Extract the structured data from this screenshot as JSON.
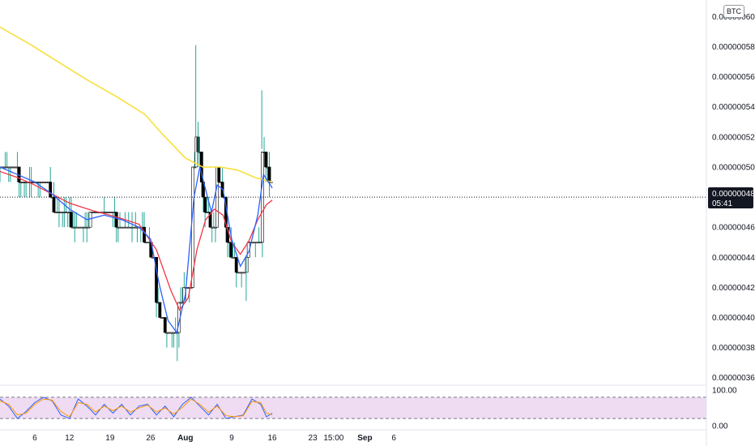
{
  "currency_badge": "BTC",
  "last_price": {
    "label": "0.00000048",
    "countdown": "05:41",
    "value": 4.8e-07
  },
  "chart_data": [
    {
      "type": "candlestick",
      "title": "",
      "price_axis": {
        "ylim": [
          3.55e-07,
          6.11e-07
        ],
        "ticks": [
          "0.00000060",
          "0.00000058",
          "0.00000056",
          "0.00000054",
          "0.00000052",
          "0.00000050",
          "0.00000048",
          "0.00000046",
          "0.00000044",
          "0.00000042",
          "0.00000040",
          "0.00000038",
          "0.00000036"
        ]
      },
      "time_axis": {
        "ticks": [
          {
            "label": "6",
            "day": 6,
            "bold": false
          },
          {
            "label": "12",
            "day": 12,
            "bold": false
          },
          {
            "label": "19",
            "day": 19,
            "bold": false
          },
          {
            "label": "26",
            "day": 26,
            "bold": false
          },
          {
            "label": "Aug",
            "day": 32,
            "bold": true
          },
          {
            "label": "9",
            "day": 40,
            "bold": false
          },
          {
            "label": "16",
            "day": 47,
            "bold": false
          },
          {
            "label": "23",
            "day": 54,
            "bold": false
          },
          {
            "label": "15:00",
            "day": 57.6,
            "bold": false
          },
          {
            "label": "Sep",
            "day": 63,
            "bold": true
          },
          {
            "label": "6",
            "day": 68,
            "bold": false
          }
        ]
      },
      "price_path": [
        [
          0,
          5e-07
        ],
        [
          3,
          5e-07
        ],
        [
          3.5,
          4.9e-07
        ],
        [
          8,
          4.9e-07
        ],
        [
          8.5,
          4.8e-07
        ],
        [
          10,
          4.7e-07
        ],
        [
          12,
          4.7e-07
        ],
        [
          12.5,
          4.6e-07
        ],
        [
          15,
          4.6e-07
        ],
        [
          16,
          4.7e-07
        ],
        [
          19,
          4.7e-07
        ],
        [
          21,
          4.6e-07
        ],
        [
          24,
          4.6e-07
        ],
        [
          25.5,
          4.5e-07
        ],
        [
          26.5,
          4.3e-07
        ],
        [
          27.5,
          4e-07
        ],
        [
          29,
          3.9e-07
        ],
        [
          30,
          3.9e-07
        ],
        [
          30.5,
          3.85e-07
        ],
        [
          31,
          4.1e-07
        ],
        [
          32,
          4.2e-07
        ],
        [
          32.7,
          4.5e-07
        ],
        [
          33.3,
          5e-07
        ],
        [
          33.8,
          5.2e-07
        ],
        [
          34.5,
          5e-07
        ],
        [
          35.5,
          4.7e-07
        ],
        [
          36.5,
          4.6e-07
        ],
        [
          37.5,
          5e-07
        ],
        [
          38.5,
          4.8e-07
        ],
        [
          39,
          4.6e-07
        ],
        [
          40,
          4.4e-07
        ],
        [
          41,
          4.3e-07
        ],
        [
          42,
          4.3e-07
        ],
        [
          43,
          4.5e-07
        ],
        [
          44,
          4.6e-07
        ],
        [
          45,
          5.2e-07
        ],
        [
          45.5,
          5e-07
        ],
        [
          46.5,
          4.9e-07
        ],
        [
          47,
          4.8e-07
        ]
      ],
      "wick_highs": [
        {
          "day": 33.8,
          "value": 5.81e-07
        },
        {
          "day": 45.2,
          "value": 5.51e-07
        },
        {
          "day": 34.2,
          "value": 5.3e-07
        }
      ],
      "wick_lows": [
        {
          "day": 30.6,
          "value": 3.71e-07
        },
        {
          "day": 42.5,
          "value": 4.11e-07
        }
      ],
      "series": [
        {
          "name": "",
          "color": "#f7e03b",
          "points": [
            [
              0,
              5.93e-07
            ],
            [
              5,
              5.82e-07
            ],
            [
              10,
              5.7e-07
            ],
            [
              15,
              5.58e-07
            ],
            [
              20,
              5.47e-07
            ],
            [
              25,
              5.35e-07
            ],
            [
              28,
              5.22e-07
            ],
            [
              32,
              5.06e-07
            ],
            [
              35,
              5e-07
            ],
            [
              38,
              5e-07
            ],
            [
              41,
              4.98e-07
            ],
            [
              44,
              4.93e-07
            ],
            [
              47,
              4.9e-07
            ]
          ]
        },
        {
          "name": "",
          "color": "#f23645",
          "points": [
            [
              0,
              4.97e-07
            ],
            [
              3,
              4.93e-07
            ],
            [
              6,
              4.88e-07
            ],
            [
              9,
              4.82e-07
            ],
            [
              12,
              4.76e-07
            ],
            [
              16,
              4.71e-07
            ],
            [
              20,
              4.67e-07
            ],
            [
              24,
              4.62e-07
            ],
            [
              27,
              4.45e-07
            ],
            [
              29.5,
              4.18e-07
            ],
            [
              31,
              4.05e-07
            ],
            [
              32.5,
              4.13e-07
            ],
            [
              34,
              4.45e-07
            ],
            [
              35.5,
              4.65e-07
            ],
            [
              37,
              4.72e-07
            ],
            [
              38.5,
              4.68e-07
            ],
            [
              40,
              4.5e-07
            ],
            [
              41.5,
              4.42e-07
            ],
            [
              43,
              4.51e-07
            ],
            [
              44.5,
              4.65e-07
            ],
            [
              46,
              4.75e-07
            ],
            [
              47,
              4.78e-07
            ]
          ]
        },
        {
          "name": "",
          "color": "#2962ff",
          "points": [
            [
              0,
              5e-07
            ],
            [
              3,
              4.95e-07
            ],
            [
              6,
              4.9e-07
            ],
            [
              9,
              4.82e-07
            ],
            [
              12,
              4.72e-07
            ],
            [
              15,
              4.65e-07
            ],
            [
              18,
              4.68e-07
            ],
            [
              21,
              4.65e-07
            ],
            [
              24,
              4.6e-07
            ],
            [
              26,
              4.52e-07
            ],
            [
              27.5,
              4.22e-07
            ],
            [
              29,
              3.98e-07
            ],
            [
              30.5,
              3.9e-07
            ],
            [
              32,
              4.15e-07
            ],
            [
              33.5,
              4.8e-07
            ],
            [
              34.5,
              5e-07
            ],
            [
              35.5,
              4.85e-07
            ],
            [
              36.5,
              4.7e-07
            ],
            [
              37.5,
              4.88e-07
            ],
            [
              38.5,
              4.85e-07
            ],
            [
              40,
              4.52e-07
            ],
            [
              41.5,
              4.34e-07
            ],
            [
              43,
              4.44e-07
            ],
            [
              44.5,
              4.68e-07
            ],
            [
              45.5,
              4.95e-07
            ],
            [
              47,
              4.86e-07
            ]
          ]
        }
      ]
    },
    {
      "type": "line",
      "title": "",
      "ylim": [
        -12,
        112
      ],
      "ticks": [
        "100.00",
        "0.00"
      ],
      "band": {
        "upper": 80,
        "lower": 20,
        "fill": "#e1bee7"
      },
      "series": [
        {
          "name": "",
          "color": "#2962ff",
          "points": [
            [
              0,
              75
            ],
            [
              1.5,
              55
            ],
            [
              3,
              20
            ],
            [
              4.5,
              40
            ],
            [
              6,
              65
            ],
            [
              7.5,
              80
            ],
            [
              9,
              70
            ],
            [
              10.5,
              30
            ],
            [
              12,
              20
            ],
            [
              13.5,
              75
            ],
            [
              15,
              55
            ],
            [
              16.5,
              30
            ],
            [
              18,
              60
            ],
            [
              19.5,
              35
            ],
            [
              21,
              60
            ],
            [
              22.5,
              30
            ],
            [
              24,
              55
            ],
            [
              25.5,
              60
            ],
            [
              27,
              30
            ],
            [
              28.5,
              55
            ],
            [
              30,
              25
            ],
            [
              31.5,
              60
            ],
            [
              33,
              80
            ],
            [
              34.5,
              55
            ],
            [
              36,
              30
            ],
            [
              37.5,
              60
            ],
            [
              39,
              20
            ],
            [
              40.5,
              25
            ],
            [
              42,
              30
            ],
            [
              43.5,
              75
            ],
            [
              45,
              60
            ],
            [
              46,
              25
            ],
            [
              47,
              35
            ]
          ]
        },
        {
          "name": "",
          "color": "#ff9800",
          "points": [
            [
              0,
              70
            ],
            [
              1.5,
              60
            ],
            [
              3,
              30
            ],
            [
              4.5,
              35
            ],
            [
              6,
              60
            ],
            [
              7.5,
              75
            ],
            [
              9,
              72
            ],
            [
              10.5,
              40
            ],
            [
              12,
              25
            ],
            [
              13.5,
              65
            ],
            [
              15,
              60
            ],
            [
              16.5,
              38
            ],
            [
              18,
              55
            ],
            [
              19.5,
              42
            ],
            [
              21,
              55
            ],
            [
              22.5,
              38
            ],
            [
              24,
              50
            ],
            [
              25.5,
              58
            ],
            [
              27,
              38
            ],
            [
              28.5,
              50
            ],
            [
              30,
              32
            ],
            [
              31.5,
              52
            ],
            [
              33,
              75
            ],
            [
              34.5,
              60
            ],
            [
              36,
              38
            ],
            [
              37.5,
              55
            ],
            [
              39,
              28
            ],
            [
              40.5,
              25
            ],
            [
              42,
              28
            ],
            [
              43.5,
              68
            ],
            [
              45,
              65
            ],
            [
              46,
              35
            ],
            [
              47,
              30
            ]
          ]
        }
      ]
    }
  ]
}
